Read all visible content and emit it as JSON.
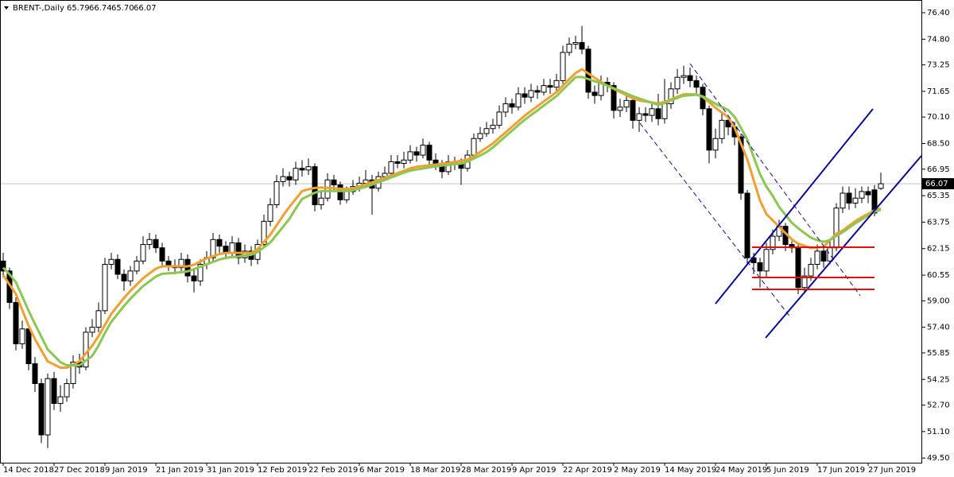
{
  "chart_data": {
    "type": "candlestick",
    "symbol": "BRENT-,Daily",
    "header_values": [
      "65.79",
      "66.74",
      "65.70",
      "66.07"
    ],
    "up_color": "#ffffff",
    "down_color": "#000000",
    "current_price_color": "#c0c0c0",
    "ylim": [
      49.22,
      77.12
    ],
    "yticks": [
      {
        "value": 76.4,
        "label": "76.40"
      },
      {
        "value": 74.8,
        "label": "74.80"
      },
      73.25,
      71.65,
      {
        "value": 70.1,
        "label": "70.10"
      },
      {
        "value": 68.5,
        "label": "68.50"
      },
      66.95,
      65.35,
      63.75,
      62.15,
      60.55,
      {
        "value": 59,
        "label": "59.00"
      },
      {
        "value": 57.4,
        "label": "57.40"
      },
      55.85,
      54.25,
      {
        "value": 52.7,
        "label": "52.70"
      },
      {
        "value": 51.1,
        "label": "51.10"
      },
      {
        "value": 49.5,
        "label": "49.50"
      }
    ],
    "categories": [
      "14 Dec 2018",
      null,
      null,
      null,
      null,
      null,
      null,
      null,
      "27 Dec 2018",
      null,
      null,
      null,
      null,
      null,
      null,
      null,
      "9 Jan 2019",
      null,
      null,
      null,
      null,
      null,
      null,
      null,
      "21 Jan 2019",
      null,
      null,
      null,
      null,
      null,
      null,
      null,
      "31 Jan 2019",
      null,
      null,
      null,
      null,
      null,
      null,
      null,
      "12 Feb 2019",
      null,
      null,
      null,
      null,
      null,
      null,
      null,
      "22 Feb 2019",
      null,
      null,
      null,
      null,
      null,
      null,
      null,
      "6 Mar 2019",
      null,
      null,
      null,
      null,
      null,
      null,
      null,
      "18 Mar 2019",
      null,
      null,
      null,
      null,
      null,
      null,
      null,
      "28 Mar 2019",
      null,
      null,
      null,
      null,
      null,
      null,
      null,
      "9 Apr 2019",
      null,
      null,
      null,
      null,
      null,
      null,
      null,
      "22 Apr 2019",
      null,
      null,
      null,
      null,
      null,
      null,
      null,
      "2 May 2019",
      null,
      null,
      null,
      null,
      null,
      null,
      null,
      "14 May 2019",
      null,
      null,
      null,
      null,
      null,
      null,
      null,
      "24 May 2019",
      null,
      null,
      null,
      null,
      null,
      null,
      null,
      "5 Jun 2019",
      null,
      null,
      null,
      null,
      null,
      null,
      null,
      "17 Jun 2019",
      null,
      null,
      null,
      null,
      null,
      null,
      null,
      "27 Jun 2019",
      null,
      null
    ],
    "open": [
      61.4,
      60.8,
      58.9,
      56.4,
      57.3,
      55.2,
      54.0,
      50.9,
      54.3,
      52.8,
      53.2,
      54.0,
      55.3,
      55.0,
      57.1,
      57.4,
      58.4,
      61.2,
      61.5,
      60.6,
      60.2,
      60.8,
      61.4,
      62.4,
      62.7,
      62.2,
      61.4,
      61.1,
      61.0,
      61.5,
      60.5,
      60.2,
      61.2,
      61.6,
      62.7,
      62.3,
      61.9,
      62.5,
      61.6,
      62.0,
      61.5,
      62.4,
      63.8,
      64.8,
      66.2,
      66.5,
      66.3,
      67.0,
      66.9,
      67.1,
      64.8,
      65.2,
      66.3,
      66.0,
      65.1,
      65.6,
      65.9,
      66.1,
      66.3,
      65.8,
      66.5,
      66.7,
      67.4,
      67.3,
      67.5,
      68.0,
      67.8,
      68.4,
      67.5,
      67.2,
      66.8,
      67.4,
      67.3,
      67.0,
      67.8,
      68.8,
      69.1,
      69.4,
      69.6,
      70.4,
      70.9,
      70.7,
      71.5,
      71.3,
      71.7,
      71.6,
      72.0,
      71.9,
      72.3,
      74.0,
      74.5,
      74.6,
      74.2,
      71.6,
      71.4,
      72.2,
      72.0,
      70.5,
      70.7,
      71.1,
      69.9,
      70.3,
      70.2,
      70.6,
      70.0,
      70.9,
      71.8,
      72.5,
      72.6,
      72.3,
      71.9,
      70.6,
      68.1,
      68.8,
      69.9,
      69.5,
      68.9,
      65.5,
      61.6,
      61.3,
      60.8,
      62.1,
      62.9,
      63.5,
      62.4,
      62.2,
      59.8,
      60.5,
      61.2,
      62.0,
      61.4,
      62.2,
      64.6,
      65.5,
      64.9,
      65.2,
      65.6,
      65.7,
      65.79
    ],
    "high": [
      61.9,
      61.0,
      59.2,
      57.8,
      57.5,
      55.6,
      54.3,
      54.6,
      54.7,
      53.9,
      54.3,
      55.7,
      55.8,
      57.4,
      57.9,
      58.9,
      61.6,
      61.9,
      61.8,
      60.9,
      61.1,
      61.7,
      62.9,
      63.1,
      63.0,
      62.5,
      61.7,
      61.5,
      61.9,
      61.8,
      60.9,
      61.5,
      62.0,
      63.1,
      63.0,
      62.6,
      62.9,
      62.8,
      62.4,
      62.3,
      62.7,
      64.2,
      65.2,
      66.6,
      67.0,
      66.8,
      67.4,
      67.5,
      67.6,
      67.3,
      65.6,
      66.7,
      66.6,
      66.2,
      65.9,
      66.3,
      66.5,
      66.9,
      66.6,
      66.8,
      67.1,
      67.8,
      67.8,
      68.0,
      68.4,
      68.3,
      68.8,
      68.6,
      67.9,
      67.5,
      67.8,
      67.7,
      67.6,
      68.1,
      69.1,
      69.5,
      69.8,
      70.0,
      70.8,
      71.3,
      71.2,
      71.9,
      71.9,
      72.1,
      72.0,
      72.4,
      72.4,
      72.7,
      74.4,
      74.9,
      75.0,
      75.6,
      74.4,
      72.0,
      72.6,
      72.5,
      72.2,
      71.2,
      71.6,
      71.3,
      70.7,
      70.7,
      71.0,
      71.5,
      72.4,
      72.2,
      73.0,
      73.2,
      73.1,
      72.6,
      72.1,
      70.8,
      69.4,
      70.3,
      70.2,
      69.8,
      69.1,
      65.7,
      61.9,
      61.6,
      62.5,
      63.3,
      63.9,
      63.7,
      62.6,
      62.4,
      61.0,
      61.6,
      62.4,
      62.3,
      62.6,
      64.9,
      65.9,
      65.9,
      65.8,
      65.9,
      65.9,
      66.0,
      66.74
    ],
    "low": [
      60.4,
      58.5,
      56.0,
      56.1,
      54.8,
      53.5,
      50.4,
      50.1,
      52.4,
      52.3,
      52.9,
      53.7,
      54.6,
      54.8,
      56.8,
      57.1,
      58.2,
      60.9,
      60.3,
      59.6,
      59.9,
      60.6,
      61.2,
      62.1,
      61.9,
      61.0,
      60.8,
      60.6,
      60.7,
      60.1,
      59.5,
      59.9,
      60.9,
      61.4,
      61.9,
      61.5,
      61.6,
      61.2,
      61.3,
      61.1,
      61.2,
      62.2,
      63.5,
      64.6,
      65.9,
      65.9,
      66.0,
      66.5,
      66.6,
      64.4,
      64.5,
      65.0,
      65.6,
      64.8,
      64.9,
      65.4,
      65.6,
      65.9,
      64.2,
      65.6,
      66.3,
      66.5,
      67.0,
      67.0,
      67.3,
      67.4,
      67.6,
      67.1,
      66.9,
      66.4,
      66.6,
      66.9,
      66.0,
      66.8,
      67.6,
      68.6,
      68.9,
      69.1,
      69.4,
      70.1,
      70.3,
      70.5,
      70.9,
      71.0,
      71.2,
      71.4,
      71.5,
      71.7,
      72.1,
      73.8,
      74.2,
      73.9,
      71.2,
      70.9,
      71.1,
      71.6,
      70.0,
      70.1,
      70.4,
      69.4,
      69.2,
      69.8,
      69.8,
      69.6,
      69.7,
      70.6,
      71.5,
      72.1,
      71.9,
      71.4,
      70.2,
      67.3,
      67.6,
      68.5,
      69.0,
      68.4,
      65.1,
      61.2,
      60.6,
      59.8,
      60.4,
      61.8,
      62.6,
      62.0,
      61.9,
      59.4,
      59.5,
      60.2,
      60.9,
      61.0,
      61.2,
      62.0,
      64.3,
      64.5,
      64.6,
      64.9,
      64.9,
      64.1,
      65.7
    ],
    "close": [
      60.8,
      58.9,
      56.4,
      57.3,
      55.2,
      54.0,
      50.9,
      54.3,
      52.8,
      53.2,
      54.0,
      55.3,
      55.0,
      57.1,
      57.4,
      58.4,
      61.2,
      61.5,
      60.6,
      60.2,
      60.8,
      61.4,
      62.4,
      62.7,
      62.2,
      61.4,
      61.1,
      61.0,
      61.5,
      60.5,
      60.2,
      61.2,
      61.6,
      62.7,
      62.3,
      61.9,
      62.5,
      61.6,
      62.0,
      61.5,
      62.4,
      63.8,
      64.8,
      66.2,
      66.5,
      66.3,
      67.0,
      66.9,
      67.1,
      64.8,
      65.2,
      66.3,
      66.0,
      65.1,
      65.6,
      65.9,
      66.1,
      66.3,
      65.8,
      66.5,
      66.7,
      67.4,
      67.3,
      67.5,
      68.0,
      67.8,
      68.4,
      67.5,
      67.2,
      66.8,
      67.4,
      67.3,
      67.0,
      67.8,
      68.8,
      69.1,
      69.4,
      69.6,
      70.4,
      70.9,
      70.7,
      71.5,
      71.3,
      71.7,
      71.6,
      72.0,
      71.9,
      72.3,
      74.0,
      74.5,
      74.6,
      74.2,
      71.6,
      71.4,
      72.2,
      72.0,
      70.5,
      70.7,
      71.1,
      69.9,
      70.3,
      70.2,
      70.6,
      70.0,
      70.9,
      71.8,
      72.5,
      72.6,
      72.3,
      71.9,
      70.6,
      68.1,
      68.8,
      69.9,
      69.5,
      68.9,
      65.5,
      61.6,
      61.3,
      60.8,
      62.1,
      62.9,
      63.5,
      62.4,
      62.2,
      59.8,
      60.5,
      61.2,
      62.0,
      61.4,
      62.2,
      64.6,
      65.5,
      64.9,
      65.2,
      65.6,
      65.4,
      64.3,
      66.07
    ],
    "series": [
      {
        "color": "#f0a030",
        "values": [
          60.55,
          59.98,
          59.41,
          58.45,
          57.49,
          56.68,
          56.01,
          55.34,
          55.15,
          54.96,
          54.96,
          55.15,
          55.34,
          55.82,
          56.29,
          56.87,
          57.54,
          58.21,
          58.69,
          59.17,
          59.6,
          59.98,
          60.36,
          60.65,
          60.94,
          61.08,
          61.08,
          61.08,
          61.08,
          61.08,
          61.18,
          61.37,
          61.56,
          61.69,
          61.82,
          61.89,
          61.89,
          61.89,
          61.89,
          61.89,
          62.11,
          62.55,
          62.99,
          63.57,
          64.14,
          64.67,
          65.15,
          65.63,
          65.73,
          65.82,
          65.84,
          65.82,
          65.8,
          65.77,
          65.74,
          65.78,
          65.91,
          66.03,
          66.16,
          66.29,
          66.42,
          66.57,
          66.71,
          66.85,
          67.0,
          67.09,
          67.14,
          67.18,
          67.23,
          67.28,
          67.33,
          67.39,
          67.46,
          67.53,
          67.73,
          67.99,
          68.24,
          68.5,
          68.84,
          69.17,
          69.51,
          69.84,
          70.18,
          70.47,
          70.75,
          71.04,
          71.32,
          71.61,
          71.99,
          72.38,
          72.76,
          72.99,
          72.73,
          72.47,
          72.22,
          71.99,
          71.8,
          71.61,
          71.42,
          71.23,
          71.1,
          71.04,
          70.98,
          70.92,
          71.01,
          71.16,
          71.32,
          71.47,
          71.47,
          71.47,
          71.31,
          70.99,
          70.66,
          70.37,
          70.08,
          69.46,
          68.5,
          67.54,
          66.29,
          65.05,
          64.24,
          63.86,
          63.47,
          63.09,
          62.71,
          62.45,
          62.32,
          62.18,
          62.22,
          62.26,
          62.66,
          63.05,
          63.24,
          63.53,
          63.81,
          64.05,
          64.25,
          64.45,
          64.58
        ]
      },
      {
        "color": "#8cc653",
        "values": [
          61.0,
          60.6,
          60.12,
          59.26,
          58.4,
          57.59,
          56.83,
          56.06,
          55.68,
          55.29,
          55.1,
          55.1,
          55.1,
          55.39,
          55.67,
          56.3,
          57.06,
          57.73,
          58.21,
          58.69,
          59.12,
          59.51,
          59.89,
          60.17,
          60.46,
          60.63,
          60.66,
          60.69,
          60.72,
          60.78,
          60.91,
          61.06,
          61.2,
          61.35,
          61.49,
          61.59,
          61.64,
          61.68,
          61.73,
          61.78,
          61.95,
          62.23,
          62.52,
          62.99,
          63.47,
          63.95,
          64.57,
          65.15,
          65.34,
          65.53,
          65.63,
          65.63,
          65.63,
          65.63,
          65.63,
          65.67,
          65.78,
          65.88,
          66.01,
          66.16,
          66.3,
          66.45,
          66.59,
          66.74,
          66.86,
          66.93,
          66.99,
          67.06,
          67.12,
          67.17,
          67.21,
          67.25,
          67.29,
          67.4,
          67.59,
          67.78,
          67.98,
          68.26,
          68.6,
          68.94,
          69.27,
          69.61,
          69.93,
          70.22,
          70.5,
          70.79,
          71.08,
          71.36,
          71.75,
          72.13,
          72.51,
          72.52,
          72.39,
          72.26,
          72.14,
          72.0,
          71.84,
          71.68,
          71.52,
          71.36,
          71.22,
          71.09,
          70.96,
          70.83,
          70.94,
          71.1,
          71.25,
          71.39,
          71.42,
          71.45,
          71.35,
          71.12,
          70.9,
          70.71,
          70.52,
          70.11,
          69.44,
          68.74,
          67.69,
          66.64,
          65.9,
          65.33,
          64.67,
          64.19,
          63.71,
          63.38,
          63.09,
          62.81,
          62.66,
          62.56,
          62.67,
          62.92,
          63.14,
          63.41,
          63.68,
          63.92,
          64.15,
          64.38,
          64.5
        ]
      }
    ]
  }
}
